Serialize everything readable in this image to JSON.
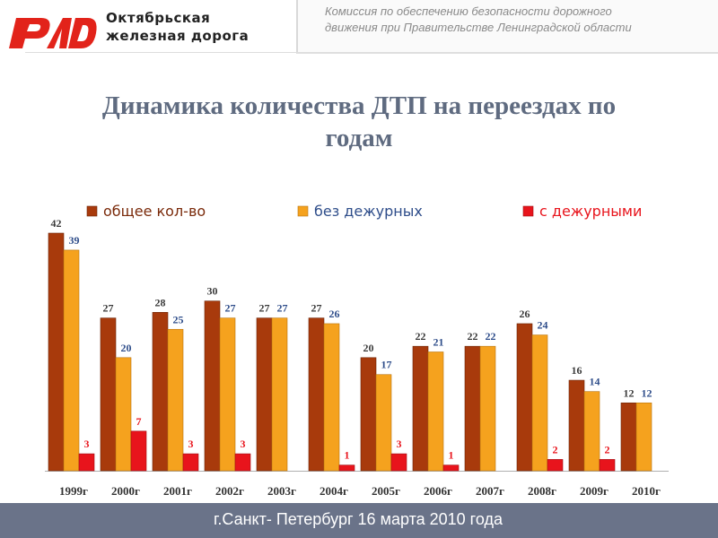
{
  "header": {
    "brand_line1": "Октябрьская",
    "brand_line2": "железная дорога",
    "commission_line1": "Комиссия по обеспечению безопасности дорожного",
    "commission_line2": "движения при Правительстве Ленинградской области"
  },
  "title_line1": "Динамика количества ДТП на переездах по",
  "title_line2": "годам",
  "footer": {
    "text": "г.Санкт- Петербург  16 марта 2010 года"
  },
  "colors": {
    "series_total": "#a83a0c",
    "series_without": "#f5a21e",
    "series_with": "#e8141c",
    "title": "#5f6b80",
    "footer_bg": "#6a7389",
    "logo_red": "#e2231a"
  },
  "chart_data": {
    "type": "bar",
    "categories": [
      "1999г",
      "2000г",
      "2001г",
      "2002г",
      "2003г",
      "2004г",
      "2005г",
      "2006г",
      "2007г",
      "2008г",
      "2009г",
      "2010г"
    ],
    "series": [
      {
        "name": "общее кол-во",
        "values": [
          42,
          27,
          28,
          30,
          27,
          27,
          20,
          22,
          22,
          26,
          16,
          12
        ]
      },
      {
        "name": "без дежурных",
        "values": [
          39,
          20,
          25,
          27,
          27,
          26,
          17,
          21,
          22,
          24,
          14,
          12
        ]
      },
      {
        "name": "с дежурными",
        "values": [
          3,
          7,
          3,
          3,
          0,
          1,
          3,
          1,
          0,
          2,
          2,
          0
        ]
      }
    ],
    "label_colors": [
      "#3a3a3a",
      "#2e4d8a",
      "#e8141c"
    ],
    "ylim": [
      0,
      45
    ],
    "grid": false,
    "legend": "top"
  }
}
